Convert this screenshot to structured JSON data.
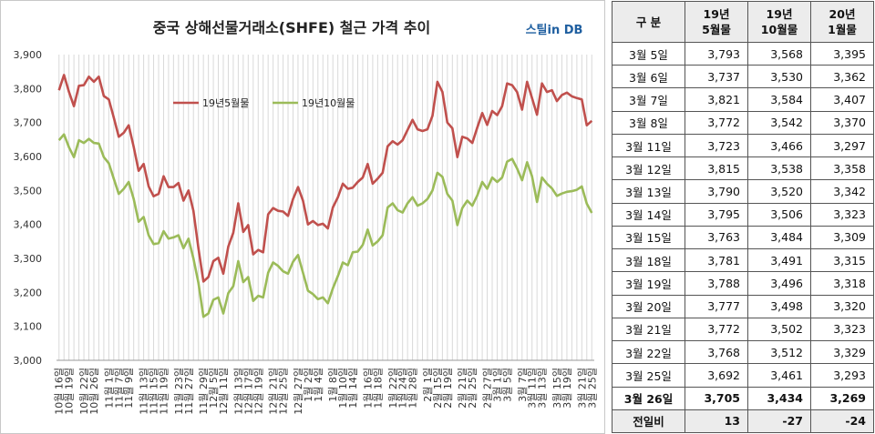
{
  "chart_data": {
    "type": "line",
    "title": "중국 상해선물거래소(SHFE) 철근 가격 추이",
    "watermark": "스틸in DB",
    "ylim": [
      3000,
      3900
    ],
    "yticks": [
      "3,900",
      "3,800",
      "3,700",
      "3,600",
      "3,500",
      "3,400",
      "3,300",
      "3,200",
      "3,100",
      "3,000"
    ],
    "grid": "vertical",
    "legend_position": "top-left",
    "x_tick_labels": [
      "10월 16일",
      "10월 19일",
      "10월 22일",
      "10월 26일",
      "11월 1일",
      "11월 7일",
      "11월 9일",
      "11월 13일",
      "11월 15일",
      "11월 19일",
      "11월 23일",
      "11월 27일",
      "11월 29일",
      "12월 5일",
      "12월 11일",
      "12월 13일",
      "12월 17일",
      "12월 19일",
      "12월 21일",
      "12월 25일",
      "12월 27일",
      "1월 2일",
      "1월 4일",
      "1월 8일",
      "1월 10일",
      "1월 14일",
      "1월 16일",
      "1월 18일",
      "1월 22일",
      "1월 24일",
      "1월 28일",
      "2월 1일",
      "2월 15일",
      "2월 19일",
      "2월 21일",
      "2월 25일",
      "2월 27일",
      "3월 1일",
      "3월 5일",
      "3월 7일",
      "3월 11일",
      "3월 13일",
      "3월 15일",
      "3월 19일",
      "3월 21일",
      "3월 25일"
    ],
    "series": [
      {
        "name": "19년5월물",
        "color": "#c0504d",
        "values": [
          3795,
          3840,
          3790,
          3748,
          3808,
          3810,
          3835,
          3820,
          3835,
          3778,
          3768,
          3715,
          3658,
          3670,
          3692,
          3628,
          3558,
          3578,
          3512,
          3483,
          3490,
          3542,
          3510,
          3510,
          3522,
          3470,
          3500,
          3440,
          3330,
          3232,
          3245,
          3292,
          3302,
          3255,
          3335,
          3375,
          3462,
          3378,
          3398,
          3312,
          3325,
          3318,
          3430,
          3448,
          3440,
          3438,
          3425,
          3475,
          3510,
          3470,
          3400,
          3410,
          3398,
          3402,
          3388,
          3450,
          3480,
          3520,
          3505,
          3508,
          3525,
          3538,
          3578,
          3520,
          3535,
          3552,
          3630,
          3645,
          3635,
          3648,
          3678,
          3708,
          3680,
          3675,
          3680,
          3720,
          3820,
          3790,
          3700,
          3683,
          3598,
          3658,
          3653,
          3640,
          3685,
          3728,
          3693,
          3734,
          3722,
          3748,
          3815,
          3810,
          3790,
          3738,
          3820,
          3772,
          3723,
          3815,
          3790,
          3795,
          3763,
          3781,
          3788,
          3777,
          3772,
          3768,
          3692,
          3705
        ]
      },
      {
        "name": "19년10월물",
        "color": "#9bbb59",
        "values": [
          3648,
          3665,
          3627,
          3598,
          3648,
          3640,
          3652,
          3640,
          3638,
          3598,
          3580,
          3535,
          3490,
          3505,
          3525,
          3475,
          3408,
          3422,
          3368,
          3342,
          3345,
          3380,
          3358,
          3362,
          3368,
          3330,
          3358,
          3300,
          3228,
          3128,
          3138,
          3178,
          3185,
          3138,
          3198,
          3218,
          3292,
          3230,
          3245,
          3175,
          3190,
          3185,
          3258,
          3288,
          3278,
          3262,
          3255,
          3290,
          3310,
          3258,
          3205,
          3195,
          3180,
          3185,
          3168,
          3212,
          3248,
          3288,
          3280,
          3318,
          3320,
          3340,
          3385,
          3338,
          3350,
          3368,
          3450,
          3462,
          3442,
          3435,
          3462,
          3480,
          3455,
          3462,
          3475,
          3500,
          3552,
          3540,
          3490,
          3470,
          3398,
          3448,
          3470,
          3455,
          3485,
          3525,
          3505,
          3538,
          3525,
          3538,
          3585,
          3593,
          3565,
          3530,
          3583,
          3542,
          3466,
          3538,
          3520,
          3506,
          3484,
          3491,
          3496,
          3498,
          3502,
          3512,
          3461,
          3434
        ]
      }
    ]
  },
  "table": {
    "headers": [
      "구  분",
      "19년\n5월물",
      "19년\n10월물",
      "20년\n1월물"
    ],
    "rows": [
      [
        "3월 5일",
        "3,793",
        "3,568",
        "3,395"
      ],
      [
        "3월 6일",
        "3,737",
        "3,530",
        "3,362"
      ],
      [
        "3월 7일",
        "3,821",
        "3,584",
        "3,407"
      ],
      [
        "3월 8일",
        "3,772",
        "3,542",
        "3,370"
      ],
      [
        "3월 11일",
        "3,723",
        "3,466",
        "3,297"
      ],
      [
        "3월 12일",
        "3,815",
        "3,538",
        "3,358"
      ],
      [
        "3월 13일",
        "3,790",
        "3,520",
        "3,342"
      ],
      [
        "3월 14일",
        "3,795",
        "3,506",
        "3,323"
      ],
      [
        "3월 15일",
        "3,763",
        "3,484",
        "3,309"
      ],
      [
        "3월 18일",
        "3,781",
        "3,491",
        "3,315"
      ],
      [
        "3월 19일",
        "3,788",
        "3,496",
        "3,318"
      ],
      [
        "3월 20일",
        "3,777",
        "3,498",
        "3,320"
      ],
      [
        "3월 21일",
        "3,772",
        "3,502",
        "3,323"
      ],
      [
        "3월 22일",
        "3,768",
        "3,512",
        "3,329"
      ],
      [
        "3월 25일",
        "3,692",
        "3,461",
        "3,293"
      ]
    ],
    "today": [
      "3월 26일",
      "3,705",
      "3,434",
      "3,269"
    ],
    "diff": [
      "전일비",
      "13",
      "-27",
      "-24"
    ]
  }
}
